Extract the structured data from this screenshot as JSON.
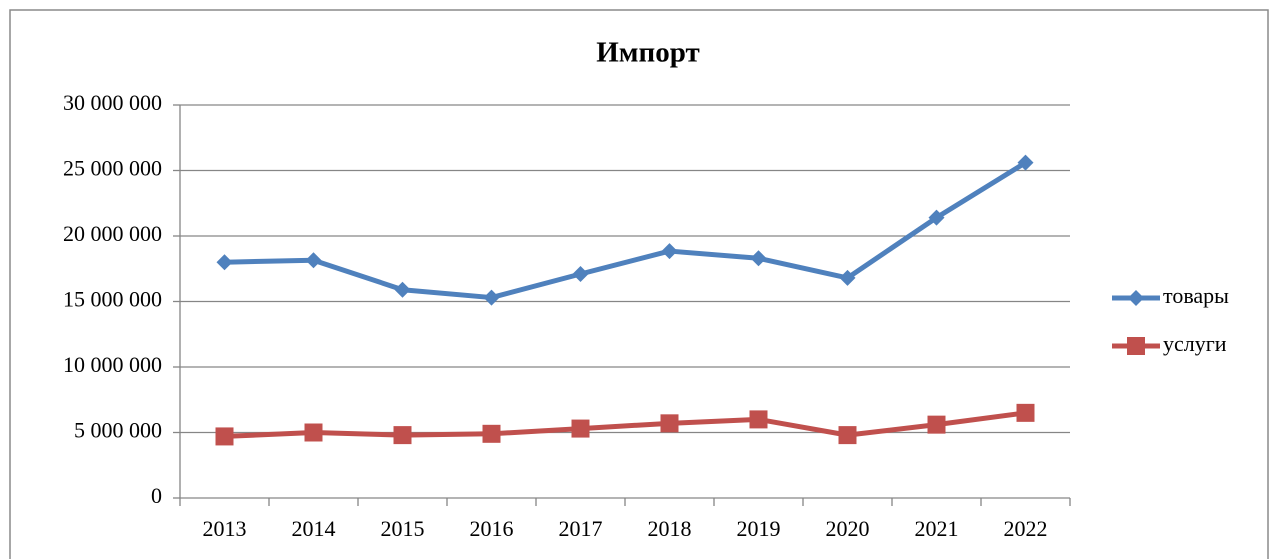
{
  "chart_data": {
    "type": "line",
    "title": "Импорт",
    "categories": [
      "2013",
      "2014",
      "2015",
      "2016",
      "2017",
      "2018",
      "2019",
      "2020",
      "2021",
      "2022"
    ],
    "series": [
      {
        "name": "товары",
        "color": "#4f81bd",
        "marker": "diamond",
        "values": [
          18000000,
          18150000,
          15900000,
          15300000,
          17100000,
          18850000,
          18300000,
          16800000,
          21400000,
          25600000
        ]
      },
      {
        "name": "услуги",
        "color": "#c0504d",
        "marker": "square",
        "values": [
          4700000,
          5000000,
          4800000,
          4900000,
          5300000,
          5700000,
          6000000,
          4800000,
          5600000,
          6500000
        ]
      }
    ],
    "ylim": [
      0,
      30000000
    ],
    "yticks": [
      0,
      {
        "value": 5000000,
        "label": "5 000 000"
      },
      {
        "value": 10000000,
        "label": "10 000 000"
      },
      {
        "value": 15000000,
        "label": "15 000 000"
      },
      {
        "value": 20000000,
        "label": "20 000 000"
      },
      {
        "value": 25000000,
        "label": "25 000 000"
      },
      {
        "value": 30000000,
        "label": "30 000 000"
      }
    ],
    "grid": true,
    "legend": "right"
  }
}
